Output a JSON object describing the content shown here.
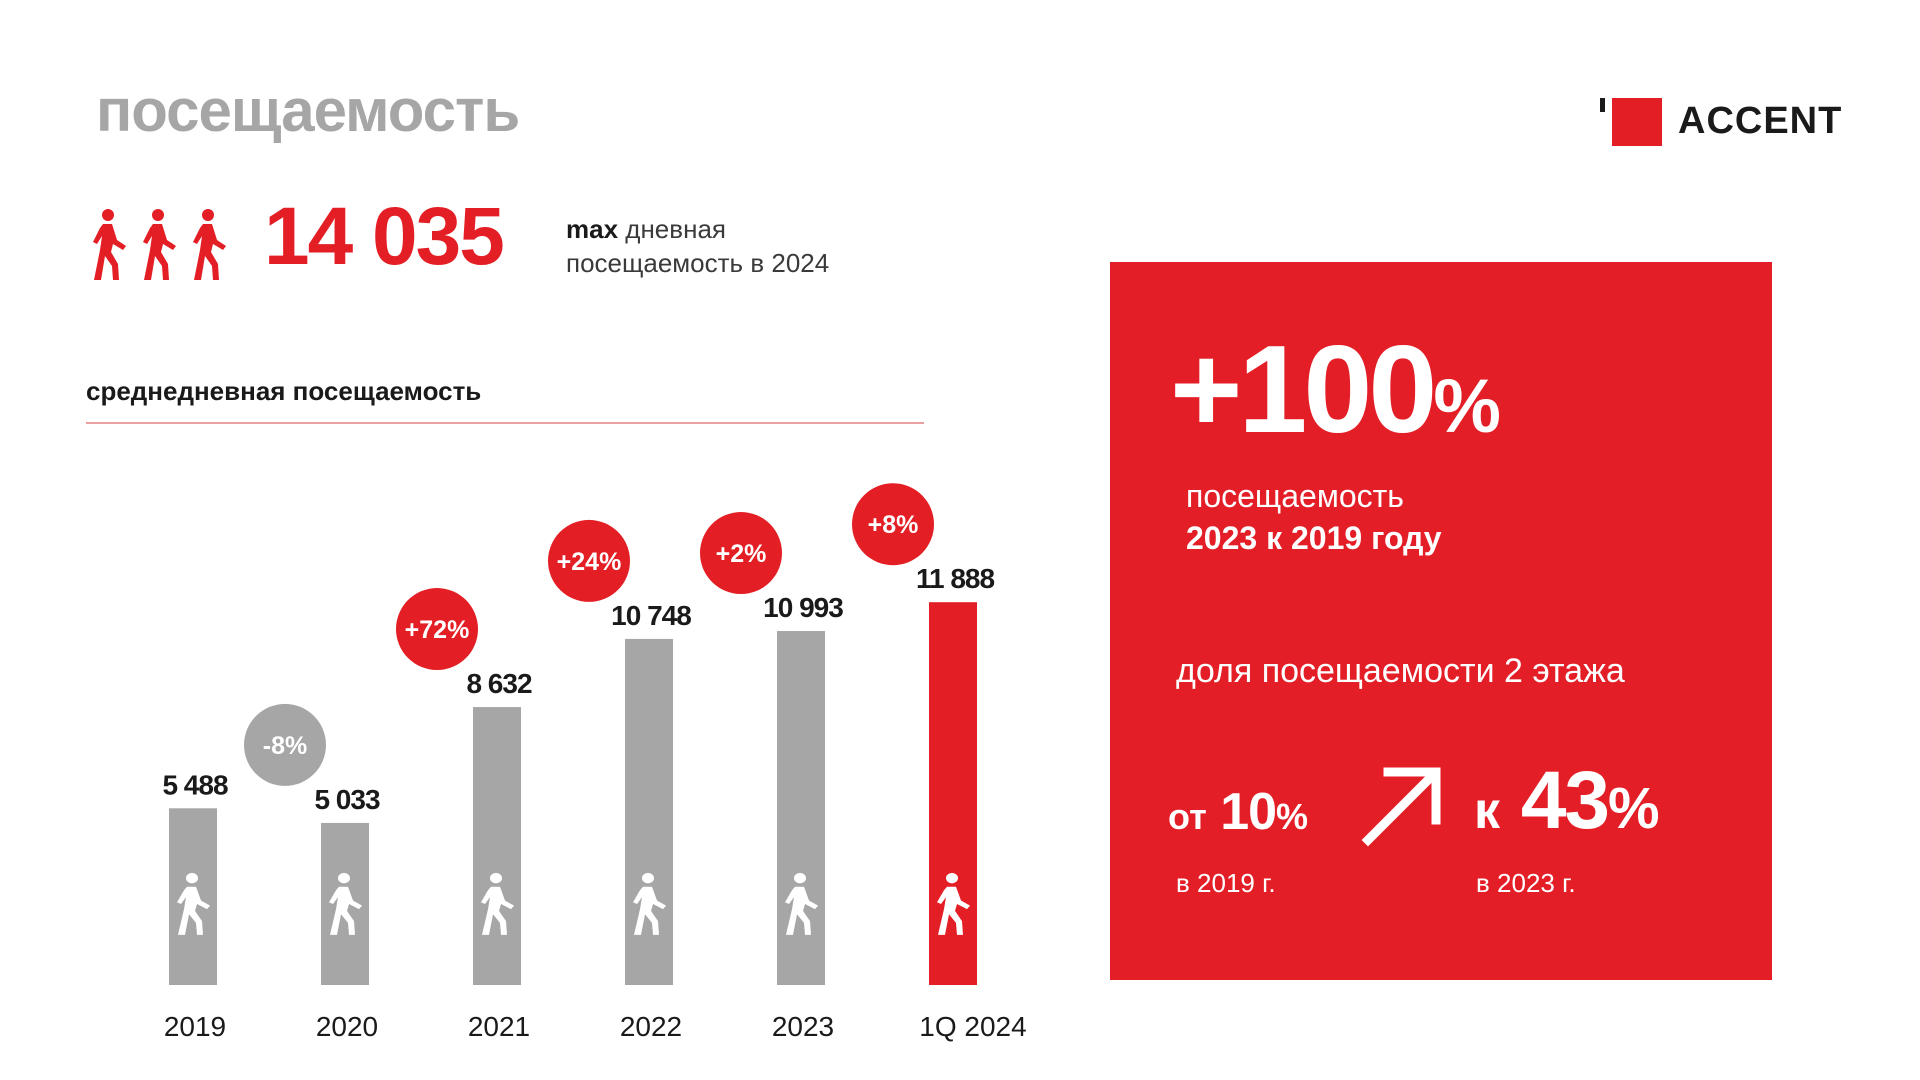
{
  "header": {
    "title": "посещаемость",
    "logo_text": "ACCENT"
  },
  "max_stat": {
    "value": "14 035",
    "caption_bold": "max",
    "caption_line1_rest": "дневная",
    "caption_line2": "посещаемость в 2024"
  },
  "chart_data": {
    "type": "bar",
    "title": "среднедневная посещаемость",
    "categories": [
      "2019",
      "2020",
      "2021",
      "2022",
      "2023",
      "1Q 2024"
    ],
    "values": [
      5488,
      5033,
      8632,
      10748,
      10993,
      11888
    ],
    "value_labels": [
      "5 488",
      "5 033",
      "8 632",
      "10 748",
      "10 993",
      "11 888"
    ],
    "changes": [
      "",
      "-8",
      "+72",
      "+24",
      "+2",
      "+8"
    ],
    "change_unit": "%",
    "highlight_index": 5,
    "colors": {
      "bar": "#a6a6a6",
      "highlight": "#e31e24",
      "bubble_positive": "#e31e24",
      "bubble_negative": "#a6a6a6"
    },
    "ylim": [
      0,
      12000
    ],
    "grid": false
  },
  "panel": {
    "big_value": "+100",
    "big_unit": "%",
    "caption_line1": "посещаемость",
    "caption_line2": "2023 к 2019 году",
    "share_label": "доля посещаемости 2 этажа",
    "from_prefix": "от",
    "from_value": "10",
    "from_unit": "%",
    "from_year": "в 2019 г.",
    "to_prefix": "к",
    "to_value": "43",
    "to_unit": "%",
    "to_year": "в 2023 г.",
    "arrow_icon": "arrow-up-right-icon"
  },
  "colors": {
    "accent": "#e31e24",
    "muted": "#a6a6a6"
  }
}
